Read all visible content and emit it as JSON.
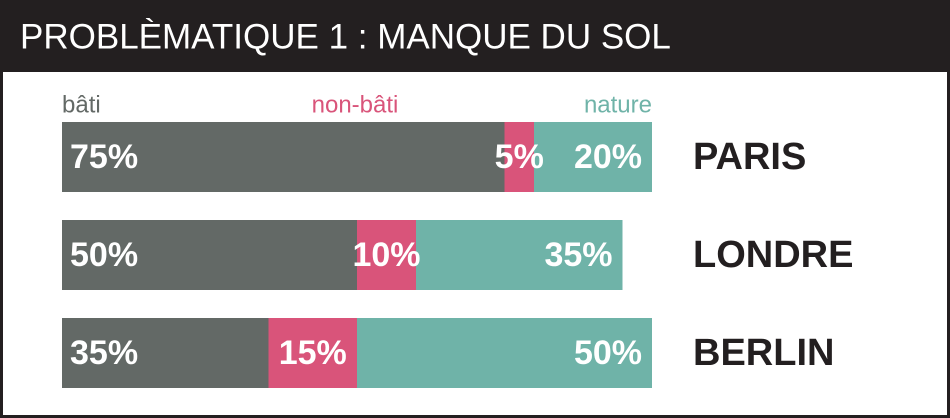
{
  "chart_data": {
    "type": "bar",
    "orientation": "horizontal",
    "stacked": true,
    "title": "PROBLÈMATIQUE 1 : MANQUE DU SOL",
    "categories": [
      "PARIS",
      "LONDRE",
      "BERLIN"
    ],
    "xlim": [
      0,
      100
    ],
    "series": [
      {
        "name": "bâti",
        "color": "#636966",
        "values": [
          75,
          50,
          35
        ],
        "value_labels": [
          "75%",
          "50%",
          "35%"
        ]
      },
      {
        "name": "non-bâti",
        "color": "#d9547a",
        "values": [
          5,
          10,
          15
        ],
        "value_labels": [
          "5%",
          "10%",
          "15%"
        ]
      },
      {
        "name": "nature",
        "color": "#6fb3a8",
        "values": [
          20,
          35,
          50
        ],
        "value_labels": [
          "20%",
          "35%",
          "50%"
        ]
      }
    ]
  }
}
